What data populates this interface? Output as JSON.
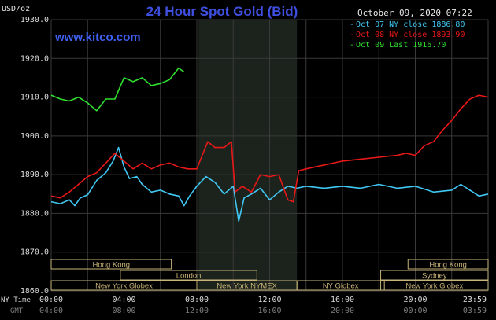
{
  "header": {
    "unit": "USD/oz",
    "title": "24 Hour Spot Gold (Bid)",
    "timestamp": "October 09, 2020 07:22",
    "site": "www.kitco.com"
  },
  "colors": {
    "background": "#000000",
    "grid": "#3a3a3a",
    "session_shade": "#1c231c",
    "title": "#3f4fdf",
    "site": "#3f5ff0",
    "text": "#e8e8e8",
    "axis_text": "#dddddd",
    "gmt_text": "#808080",
    "market_box_border": "#c8b478",
    "market_box_text": "#c8b478",
    "series_oct07": "#40c8f4",
    "series_oct08": "#e81818",
    "series_oct09": "#30e030"
  },
  "legend": [
    {
      "label": "Oct 07 NY close 1886.80",
      "color": "#40c8f4"
    },
    {
      "label": "Oct 08 NY close 1893.90",
      "color": "#e81818"
    },
    {
      "label": "Oct 09 Last 1916.70",
      "color": "#30e030"
    }
  ],
  "axis": {
    "ny_time_label": "NY Time",
    "gmt_label": "GMT",
    "ny_ticks": [
      "00:00",
      "04:00",
      "08:00",
      "12:00",
      "16:00",
      "20:00",
      "23:59"
    ],
    "gmt_ticks": [
      "04:00",
      "08:00",
      "12:00",
      "16:00",
      "20:00",
      "00:00",
      "03:59"
    ]
  },
  "markets": [
    {
      "label": "Hong Kong"
    },
    {
      "label": "London"
    },
    {
      "label": "New York Globex"
    },
    {
      "label": "New York NYMEX"
    },
    {
      "label": "NY Globex"
    },
    {
      "label": "Hong Kong"
    },
    {
      "label": "Sydney"
    },
    {
      "label": "New York Globex"
    }
  ],
  "chart_data": {
    "type": "line",
    "title": "24 Hour Spot Gold (Bid)",
    "ylabel": "USD/oz",
    "xlabel": "NY Time",
    "xlim": [
      0,
      24
    ],
    "ylim": [
      1860,
      1930
    ],
    "y_ticks": [
      "1930.0",
      "1920.0",
      "1910.0",
      "1900.0",
      "1890.0",
      "1880.0",
      "1870.0",
      "1860.0"
    ],
    "grid": true,
    "shaded_session_hours": [
      8.1,
      13.5
    ],
    "series": [
      {
        "name": "Oct 07 NY close 1886.80",
        "x": [
          0,
          0.5,
          1,
          1.3,
          1.6,
          2,
          2.5,
          3,
          3.4,
          3.7,
          4,
          4.3,
          4.7,
          5,
          5.5,
          6,
          6.5,
          7,
          7.3,
          7.6,
          8,
          8.5,
          9,
          9.5,
          10,
          10.3,
          10.6,
          11,
          11.5,
          12,
          12.5,
          13,
          13.5,
          14,
          15,
          16,
          17,
          18,
          19,
          20,
          21,
          22,
          22.5,
          23,
          23.5,
          24
        ],
        "y": [
          1883.0,
          1882.5,
          1883.5,
          1882.0,
          1884.0,
          1884.8,
          1888.5,
          1890.5,
          1893.5,
          1897.0,
          1892.0,
          1889.0,
          1889.5,
          1887.5,
          1885.5,
          1886.0,
          1885.0,
          1884.5,
          1882.0,
          1884.5,
          1887.0,
          1889.5,
          1888.0,
          1885.0,
          1887.0,
          1878.0,
          1884.0,
          1885.0,
          1886.5,
          1883.5,
          1885.5,
          1887.0,
          1886.5,
          1887.0,
          1886.5,
          1887.0,
          1886.5,
          1887.5,
          1886.5,
          1887.0,
          1885.5,
          1886.0,
          1887.5,
          1886.0,
          1884.5,
          1885.0
        ]
      },
      {
        "name": "Oct 08 NY close 1893.90",
        "x": [
          0,
          0.5,
          1,
          1.5,
          2,
          2.5,
          3,
          3.5,
          4,
          4.5,
          5,
          5.5,
          6,
          6.5,
          7,
          7.5,
          8,
          8.3,
          8.6,
          9,
          9.5,
          9.9,
          10.1,
          10.5,
          11,
          11.5,
          12,
          12.5,
          13,
          13.3,
          13.6,
          14,
          15,
          16,
          17,
          18,
          19,
          19.5,
          20,
          20.5,
          21,
          21.5,
          22,
          22.5,
          23,
          23.5,
          24
        ],
        "y": [
          1884.5,
          1884.0,
          1885.5,
          1887.5,
          1889.5,
          1890.5,
          1893.0,
          1895.5,
          1893.5,
          1891.5,
          1893.0,
          1891.5,
          1892.5,
          1893.0,
          1892.0,
          1891.5,
          1891.5,
          1895.0,
          1898.5,
          1897.0,
          1897.0,
          1898.5,
          1885.5,
          1887.0,
          1885.5,
          1890.0,
          1889.5,
          1890.0,
          1883.5,
          1883.0,
          1891.0,
          1891.5,
          1892.5,
          1893.5,
          1894.0,
          1894.5,
          1895.0,
          1895.5,
          1895.0,
          1897.5,
          1898.5,
          1901.5,
          1904.0,
          1907.0,
          1909.5,
          1910.5,
          1910.0
        ]
      },
      {
        "name": "Oct 09 Last 1916.70",
        "x": [
          0,
          0.5,
          1,
          1.5,
          2,
          2.5,
          3,
          3.5,
          4,
          4.5,
          5,
          5.5,
          6,
          6.5,
          7,
          7.3
        ],
        "y": [
          1910.5,
          1909.5,
          1909.0,
          1910.0,
          1908.5,
          1906.5,
          1909.5,
          1909.5,
          1915.0,
          1914.0,
          1915.0,
          1913.0,
          1913.5,
          1914.5,
          1917.5,
          1916.5
        ]
      }
    ]
  }
}
